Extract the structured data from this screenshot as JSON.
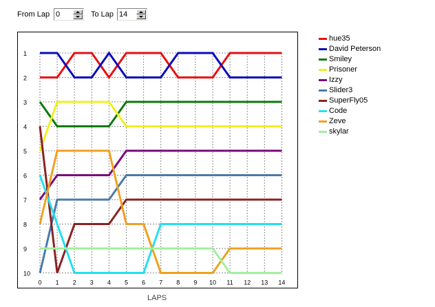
{
  "controls": {
    "from_label": "From Lap",
    "from_value": "0",
    "to_label": "To Lap",
    "to_value": "14"
  },
  "chart_data": {
    "type": "line",
    "xlabel": "LAPS",
    "ylabel": "",
    "x": [
      0,
      1,
      2,
      3,
      4,
      5,
      6,
      7,
      8,
      9,
      10,
      11,
      12,
      13,
      14
    ],
    "xlim": [
      0,
      14
    ],
    "ylim": [
      1,
      10
    ],
    "y_ticks": [
      1,
      2,
      3,
      4,
      5,
      6,
      7,
      8,
      9,
      10
    ],
    "y_inverted": true,
    "grid": true,
    "legend_position": "right",
    "series": [
      {
        "name": "hue35",
        "color": "#e81010",
        "values": [
          2,
          2,
          1,
          1,
          2,
          1,
          1,
          1,
          2,
          2,
          2,
          1,
          1,
          1,
          1
        ]
      },
      {
        "name": "David Peterson",
        "color": "#0b0bb8",
        "values": [
          1,
          1,
          2,
          2,
          1,
          2,
          2,
          2,
          1,
          1,
          1,
          2,
          2,
          2,
          2
        ]
      },
      {
        "name": "Smiley",
        "color": "#0b7a0b",
        "values": [
          3,
          4,
          4,
          4,
          4,
          3,
          3,
          3,
          3,
          3,
          3,
          3,
          3,
          3,
          3
        ]
      },
      {
        "name": "Prisoner",
        "color": "#f0f020",
        "values": [
          5,
          3,
          3,
          3,
          3,
          4,
          4,
          4,
          4,
          4,
          4,
          4,
          4,
          4,
          4
        ]
      },
      {
        "name": "Izzy",
        "color": "#7a0a7a",
        "values": [
          7,
          6,
          6,
          6,
          6,
          5,
          5,
          5,
          5,
          5,
          5,
          5,
          5,
          5,
          5
        ]
      },
      {
        "name": "Slider3",
        "color": "#4a7aa8",
        "values": [
          10,
          7,
          7,
          7,
          7,
          6,
          6,
          6,
          6,
          6,
          6,
          6,
          6,
          6,
          6
        ]
      },
      {
        "name": "SuperFly05",
        "color": "#8a2222",
        "values": [
          4,
          10,
          8,
          8,
          8,
          7,
          7,
          7,
          7,
          7,
          7,
          7,
          7,
          7,
          7
        ]
      },
      {
        "name": "Code",
        "color": "#22e0f0",
        "values": [
          6,
          8,
          10,
          10,
          10,
          10,
          10,
          8,
          8,
          8,
          8,
          8,
          8,
          8,
          8
        ]
      },
      {
        "name": "Zeve",
        "color": "#f0a020",
        "values": [
          8,
          5,
          5,
          5,
          5,
          8,
          8,
          10,
          10,
          10,
          10,
          9,
          9,
          9,
          9
        ]
      },
      {
        "name": "skylar",
        "color": "#a0f0a0",
        "values": [
          9,
          9,
          9,
          9,
          9,
          9,
          9,
          9,
          9,
          9,
          9,
          10,
          10,
          10,
          10
        ]
      }
    ]
  }
}
